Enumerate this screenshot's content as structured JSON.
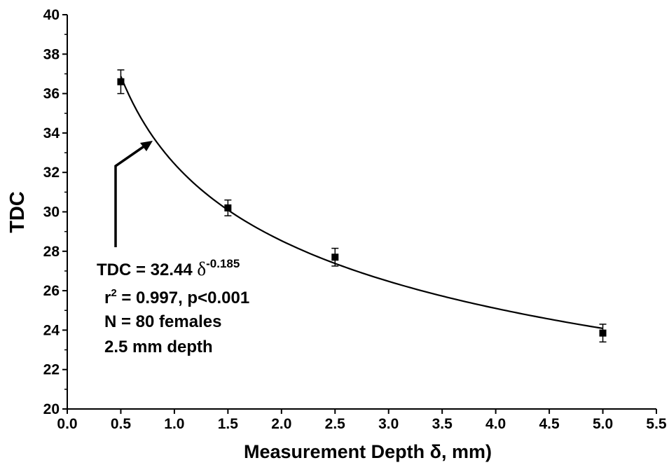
{
  "chart_data": {
    "type": "scatter",
    "xlabel": "Measurement Depth δ, mm)",
    "ylabel": "TDC",
    "xlim": [
      0.0,
      5.5
    ],
    "ylim": [
      20,
      40
    ],
    "x_ticks": [
      "0.0",
      "0.5",
      "1.0",
      "1.5",
      "2.0",
      "2.5",
      "3.0",
      "3.5",
      "4.0",
      "4.5",
      "5.0",
      "5.5"
    ],
    "y_ticks": [
      "20",
      "22",
      "24",
      "26",
      "28",
      "30",
      "32",
      "34",
      "36",
      "38",
      "40"
    ],
    "grid": false,
    "legend": "none",
    "series": [
      {
        "points": [
          {
            "x": 0.5,
            "y": 36.6,
            "err": 0.6
          },
          {
            "x": 1.5,
            "y": 30.2,
            "err": 0.4
          },
          {
            "x": 2.5,
            "y": 27.7,
            "err": 0.45
          },
          {
            "x": 5.0,
            "y": 23.85,
            "err": 0.45
          }
        ]
      }
    ],
    "fit": {
      "type": "power",
      "coefficient": 32.44,
      "exponent": -0.185,
      "x_range": [
        0.5,
        5.0
      ]
    },
    "annotation": {
      "equation_prefix": "TDC = 32.44 ",
      "equation_symbol": "δ",
      "equation_exponent": "-0.185",
      "r2_base": "r",
      "r2_sup": "2",
      "r2_rest": " = 0.997, p<0.001",
      "n_line": "N = 80 females",
      "depth_line": "2.5 mm depth"
    }
  }
}
